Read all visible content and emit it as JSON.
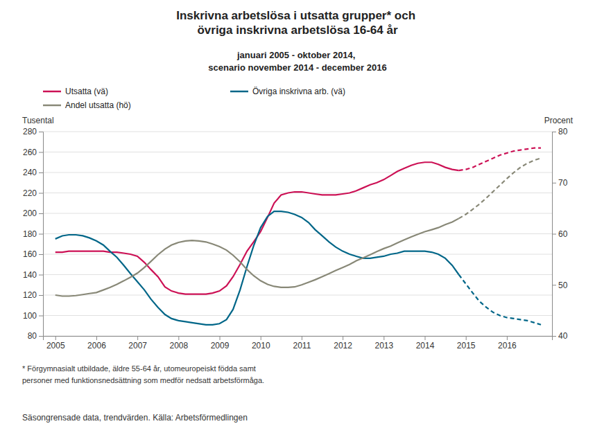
{
  "chart_data": {
    "type": "line",
    "title": "Inskrivna arbetslösa i utsatta grupper* och\növriga inskrivna arbetslösa 16-64 år",
    "subtitle": "januari 2005 - oktober 2014,\nscenario november 2014 - december 2016",
    "ylabel": "Tusental",
    "y2label": "Procent",
    "annotations": [
      "* Förgymnasialt utbildade, äldre 55-64 år, utomeuropeiskt födda  samt",
      "personer med funktionsnedsättning som medför nedsatt arbetsförmåga.",
      "Säsongrensade data, trendvärden. Källa: Arbetsförmedlingen"
    ],
    "xlim": [
      2004.7,
      2017.1
    ],
    "xticks": [
      2005,
      2006,
      2007,
      2008,
      2009,
      2010,
      2011,
      2012,
      2013,
      2014,
      2015,
      2016
    ],
    "ylim": [
      80,
      280
    ],
    "yticks": [
      80,
      100,
      120,
      140,
      160,
      180,
      200,
      220,
      240,
      260,
      280
    ],
    "y2lim": [
      40,
      80
    ],
    "y2ticks": [
      40,
      50,
      60,
      70,
      80
    ],
    "grid": true,
    "legend": "upper left",
    "series": [
      {
        "name": "Utsatta (vä)",
        "color": "#cc1155",
        "line_style": "solid",
        "x": [
          2005.0,
          2005.17,
          2005.33,
          2005.5,
          2005.67,
          2005.83,
          2006.0,
          2006.17,
          2006.33,
          2006.5,
          2006.67,
          2006.83,
          2007.0,
          2007.17,
          2007.33,
          2007.5,
          2007.67,
          2007.83,
          2008.0,
          2008.17,
          2008.33,
          2008.5,
          2008.67,
          2008.83,
          2009.0,
          2009.17,
          2009.33,
          2009.5,
          2009.67,
          2009.83,
          2010.0,
          2010.17,
          2010.33,
          2010.5,
          2010.67,
          2010.83,
          2011.0,
          2011.17,
          2011.33,
          2011.5,
          2011.67,
          2011.83,
          2012.0,
          2012.17,
          2012.33,
          2012.5,
          2012.67,
          2012.83,
          2013.0,
          2013.17,
          2013.33,
          2013.5,
          2013.67,
          2013.83,
          2014.0,
          2014.17,
          2014.33,
          2014.5,
          2014.67,
          2014.83
        ],
        "values": [
          162,
          162,
          163,
          163,
          163,
          163,
          163,
          163,
          162,
          162,
          161,
          160,
          158,
          152,
          145,
          138,
          128,
          124,
          122,
          121,
          121,
          121,
          121,
          122,
          124,
          129,
          138,
          150,
          163,
          172,
          182,
          196,
          210,
          218,
          220,
          221,
          221,
          220,
          219,
          218,
          218,
          218,
          219,
          220,
          222,
          225,
          228,
          230,
          233,
          237,
          241,
          244,
          247,
          249,
          250,
          250,
          248,
          245,
          243,
          242
        ]
      },
      {
        "color": "#cc1155",
        "line_style": "dashed",
        "x": [
          2014.83,
          2015.0,
          2015.17,
          2015.33,
          2015.5,
          2015.67,
          2015.83,
          2016.0,
          2016.17,
          2016.33,
          2016.5,
          2016.67,
          2016.83
        ],
        "values": [
          242,
          243,
          245,
          248,
          251,
          254,
          257,
          259,
          261,
          262,
          263,
          264,
          264
        ]
      },
      {
        "name": "Övriga inskrivna arb. (vä)",
        "color": "#006688",
        "line_style": "solid",
        "x": [
          2005.0,
          2005.17,
          2005.33,
          2005.5,
          2005.67,
          2005.83,
          2006.0,
          2006.17,
          2006.33,
          2006.5,
          2006.67,
          2006.83,
          2007.0,
          2007.17,
          2007.33,
          2007.5,
          2007.67,
          2007.83,
          2008.0,
          2008.17,
          2008.33,
          2008.5,
          2008.67,
          2008.83,
          2009.0,
          2009.17,
          2009.33,
          2009.5,
          2009.67,
          2009.83,
          2010.0,
          2010.17,
          2010.33,
          2010.5,
          2010.67,
          2010.83,
          2011.0,
          2011.17,
          2011.33,
          2011.5,
          2011.67,
          2011.83,
          2012.0,
          2012.17,
          2012.33,
          2012.5,
          2012.67,
          2012.83,
          2013.0,
          2013.17,
          2013.33,
          2013.5,
          2013.67,
          2013.83,
          2014.0,
          2014.17,
          2014.33,
          2014.5,
          2014.67,
          2014.83
        ],
        "values": [
          175,
          178,
          179,
          179,
          178,
          176,
          173,
          169,
          163,
          157,
          149,
          141,
          133,
          125,
          116,
          108,
          101,
          97,
          95,
          94,
          93,
          92,
          91,
          91,
          92,
          96,
          106,
          125,
          148,
          168,
          186,
          197,
          202,
          202,
          201,
          199,
          196,
          191,
          184,
          178,
          172,
          167,
          163,
          160,
          158,
          156,
          156,
          157,
          158,
          160,
          161,
          163,
          163,
          163,
          163,
          162,
          160,
          156,
          149,
          140
        ]
      },
      {
        "color": "#006688",
        "line_style": "dashed",
        "x": [
          2014.83,
          2015.0,
          2015.17,
          2015.33,
          2015.5,
          2015.67,
          2015.83,
          2016.0,
          2016.17,
          2016.33,
          2016.5,
          2016.67,
          2016.83
        ],
        "values": [
          140,
          131,
          122,
          114,
          108,
          103,
          100,
          98,
          97,
          96,
          95,
          93,
          91
        ]
      },
      {
        "name": "Andel utsatta (hö)",
        "color": "#888877",
        "line_style": "solid",
        "axis": "y2",
        "x": [
          2005.0,
          2005.17,
          2005.33,
          2005.5,
          2005.67,
          2005.83,
          2006.0,
          2006.17,
          2006.33,
          2006.5,
          2006.67,
          2006.83,
          2007.0,
          2007.17,
          2007.33,
          2007.5,
          2007.67,
          2007.83,
          2008.0,
          2008.17,
          2008.33,
          2008.5,
          2008.67,
          2008.83,
          2009.0,
          2009.17,
          2009.33,
          2009.5,
          2009.67,
          2009.83,
          2010.0,
          2010.17,
          2010.33,
          2010.5,
          2010.67,
          2010.83,
          2011.0,
          2011.17,
          2011.33,
          2011.5,
          2011.67,
          2011.83,
          2012.0,
          2012.17,
          2012.33,
          2012.5,
          2012.67,
          2012.83,
          2013.0,
          2013.17,
          2013.33,
          2013.5,
          2013.67,
          2013.83,
          2014.0,
          2014.17,
          2014.33,
          2014.5,
          2014.67,
          2014.83
        ],
        "values": [
          48.0,
          47.8,
          47.8,
          47.9,
          48.1,
          48.3,
          48.5,
          49.0,
          49.5,
          50.1,
          50.8,
          51.5,
          52.3,
          53.4,
          54.6,
          55.9,
          57.0,
          57.8,
          58.3,
          58.6,
          58.7,
          58.6,
          58.4,
          58.0,
          57.5,
          56.8,
          55.8,
          54.5,
          53.0,
          51.8,
          50.8,
          50.1,
          49.7,
          49.5,
          49.5,
          49.6,
          50.0,
          50.5,
          51.0,
          51.6,
          52.2,
          52.8,
          53.4,
          54.0,
          54.7,
          55.3,
          55.9,
          56.5,
          57.1,
          57.6,
          58.2,
          58.8,
          59.4,
          59.9,
          60.4,
          60.8,
          61.2,
          61.8,
          62.3,
          63.0
        ]
      },
      {
        "color": "#888877",
        "line_style": "dashed",
        "axis": "y2",
        "x": [
          2014.83,
          2015.0,
          2015.17,
          2015.33,
          2015.5,
          2015.67,
          2015.83,
          2016.0,
          2016.17,
          2016.33,
          2016.5,
          2016.67,
          2016.83
        ],
        "values": [
          63.0,
          63.8,
          64.8,
          65.8,
          67.0,
          68.3,
          69.5,
          70.8,
          72.0,
          73.0,
          73.8,
          74.4,
          74.8
        ]
      }
    ]
  }
}
